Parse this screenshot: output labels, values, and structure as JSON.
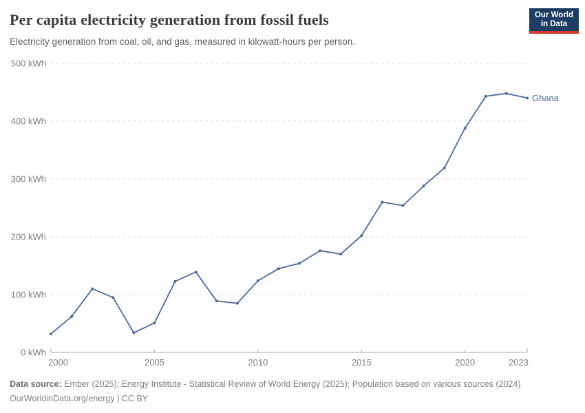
{
  "header": {
    "title": "Per capita electricity generation from fossil fuels",
    "subtitle": "Electricity generation from coal, oil, and gas, measured in kilowatt-hours per person.",
    "logo": {
      "line1": "Our World",
      "line2": "in Data",
      "bg_color": "#1d3d63",
      "stripe_color": "#d7392d",
      "text_color": "#ffffff"
    }
  },
  "chart_data": {
    "type": "line",
    "title": "Per capita electricity generation from fossil fuels",
    "xlabel": "",
    "ylabel": "kWh",
    "x": [
      2000,
      2001,
      2002,
      2003,
      2004,
      2005,
      2006,
      2007,
      2008,
      2009,
      2010,
      2011,
      2012,
      2013,
      2014,
      2015,
      2016,
      2017,
      2018,
      2019,
      2020,
      2021,
      2022,
      2023
    ],
    "series": [
      {
        "name": "Ghana",
        "color": "#4c6a9c",
        "values": [
          32,
          62,
          110,
          95,
          34,
          51,
          123,
          139,
          89,
          85,
          124,
          145,
          154,
          176,
          170,
          202,
          260,
          254,
          288,
          319,
          388,
          443,
          448,
          440
        ]
      }
    ],
    "x_ticks": [
      2000,
      2005,
      2010,
      2015,
      2020,
      2023
    ],
    "y_ticks": [
      0,
      100,
      200,
      300,
      400,
      500
    ],
    "y_tick_suffix": " kWh",
    "xlim": [
      2000,
      2023
    ],
    "ylim": [
      0,
      500
    ],
    "grid": "horizontal-dashed",
    "grid_color": "#dcdcdc",
    "axis_color": "#a5a5a5",
    "tick_label_color": "#7e7e7e",
    "legend": "series-label-at-line-end"
  },
  "footer": {
    "datasource_label": "Data source:",
    "datasource_text": " Ember (2025); Energy Institute - Statistical Review of World Energy (2025); Population based on various sources (2024)",
    "license_line": "OurWorldinData.org/energy | CC BY"
  }
}
